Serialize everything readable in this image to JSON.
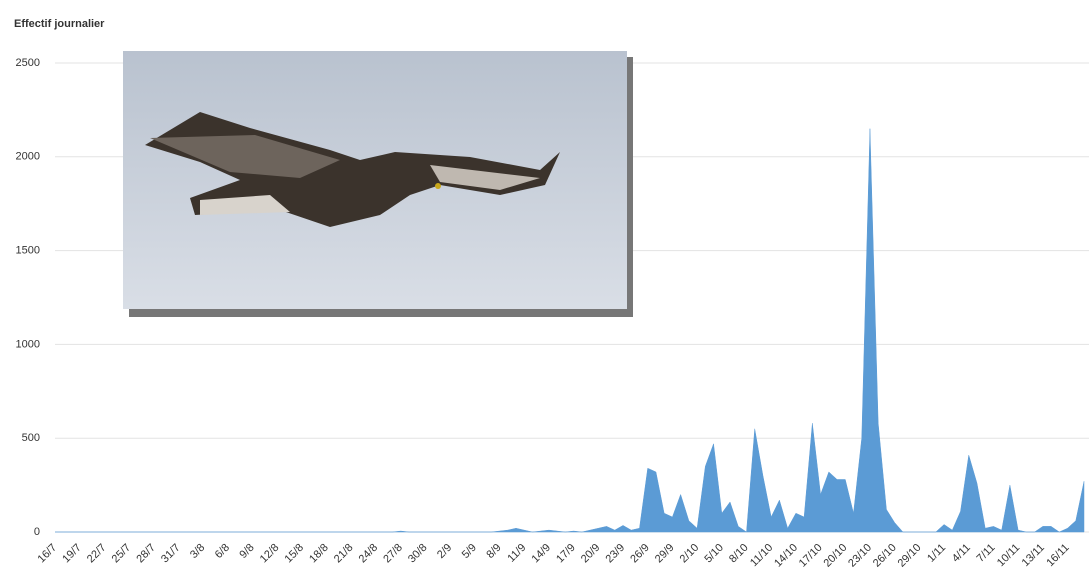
{
  "chart_data": {
    "type": "area",
    "title": "Effectif journalier",
    "categories": [
      "16/7",
      null,
      null,
      "19/7",
      null,
      null,
      "22/7",
      null,
      null,
      "25/7",
      null,
      null,
      "28/7",
      null,
      null,
      "31/7",
      null,
      null,
      "3/8",
      null,
      null,
      "6/8",
      null,
      null,
      "9/8",
      null,
      null,
      "12/8",
      null,
      null,
      "15/8",
      null,
      null,
      "18/8",
      null,
      null,
      "21/8",
      null,
      null,
      "24/8",
      null,
      null,
      "27/8",
      null,
      null,
      "30/8",
      null,
      null,
      "2/9",
      null,
      null,
      "5/9",
      null,
      null,
      "8/9",
      null,
      null,
      "11/9",
      null,
      null,
      "14/9",
      null,
      null,
      "17/9",
      null,
      null,
      "20/9",
      null,
      null,
      "23/9",
      null,
      null,
      "26/9",
      null,
      null,
      "29/9",
      null,
      null,
      "2/10",
      null,
      null,
      "5/10",
      null,
      null,
      "8/10",
      null,
      null,
      "11/10",
      null,
      null,
      "14/10",
      null,
      null,
      "17/10",
      null,
      null,
      "20/10",
      null,
      null,
      "23/10",
      null,
      null,
      "26/10",
      null,
      null,
      "29/10",
      null,
      null,
      "1/11",
      null,
      null,
      "4/11",
      null,
      null,
      "7/11",
      null,
      null,
      "10/11",
      null,
      null,
      "13/11",
      null,
      null,
      "16/11",
      null,
      null
    ],
    "values": [
      0,
      0,
      0,
      0,
      0,
      0,
      0,
      0,
      0,
      0,
      0,
      0,
      0,
      0,
      0,
      0,
      0,
      0,
      0,
      0,
      0,
      0,
      0,
      0,
      0,
      0,
      0,
      0,
      0,
      0,
      0,
      0,
      0,
      0,
      0,
      0,
      0,
      0,
      0,
      0,
      0,
      0,
      5,
      0,
      0,
      0,
      0,
      0,
      0,
      0,
      0,
      0,
      0,
      0,
      5,
      10,
      20,
      10,
      0,
      5,
      10,
      5,
      0,
      5,
      0,
      10,
      20,
      30,
      10,
      35,
      10,
      20,
      340,
      320,
      100,
      80,
      200,
      60,
      20,
      350,
      470,
      100,
      160,
      30,
      0,
      550,
      300,
      80,
      170,
      20,
      100,
      80,
      580,
      200,
      320,
      280,
      280,
      100,
      500,
      2150,
      580,
      120,
      50,
      0,
      0,
      0,
      0,
      0,
      40,
      10,
      110,
      410,
      260,
      20,
      30,
      10,
      250,
      10,
      0,
      0,
      30,
      30,
      0,
      20,
      60,
      270
    ],
    "color": "#5b9bd5",
    "ylim": [
      0,
      2500
    ],
    "yticks": [
      0,
      500,
      1000,
      1500,
      2000,
      2500
    ],
    "grid": true
  }
}
